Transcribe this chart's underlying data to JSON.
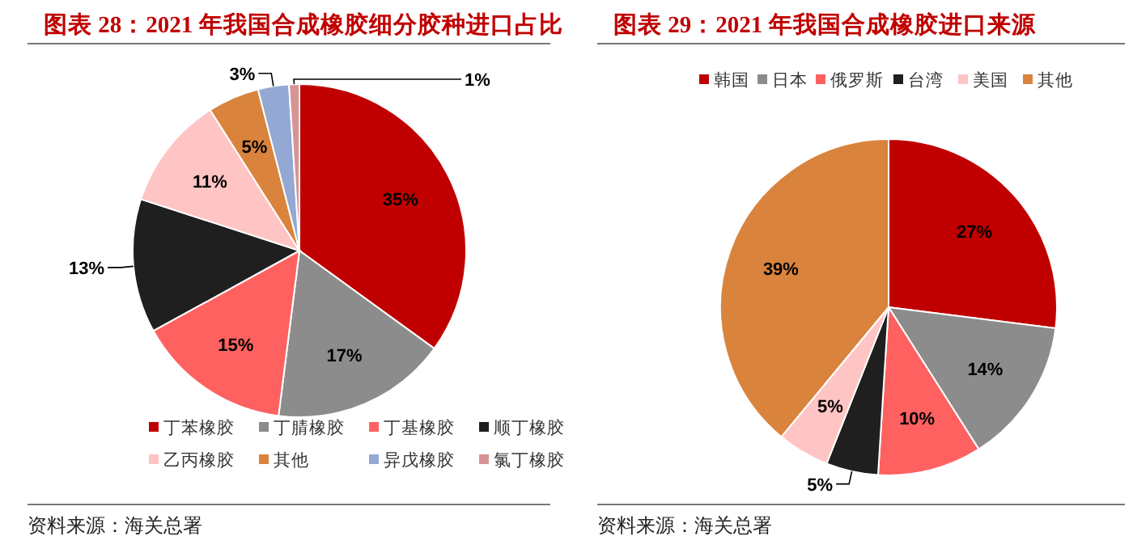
{
  "chart_data": [
    {
      "type": "pie",
      "title": "图表 28：2021 年我国合成橡胶细分胶种进口占比",
      "categories": [
        "丁苯橡胶",
        "丁腈橡胶",
        "丁基橡胶",
        "顺丁橡胶",
        "乙丙橡胶",
        "其他",
        "异戊橡胶",
        "氯丁橡胶"
      ],
      "values": [
        35,
        17,
        15,
        13,
        11,
        5,
        3,
        1
      ],
      "colors": [
        "#c00000",
        "#8c8c8c",
        "#ff6161",
        "#1f1f1f",
        "#ffc4c4",
        "#d9833d",
        "#93a9d4",
        "#d79494"
      ],
      "value_labels": [
        "35%",
        "17%",
        "15%",
        "13%",
        "11%",
        "5%",
        "3%",
        "1%"
      ],
      "legend": "bottom",
      "annotations": [
        "资料来源：海关总署"
      ]
    },
    {
      "type": "pie",
      "title": "图表 29：2021 年我国合成橡胶进口来源",
      "categories": [
        "韩国",
        "日本",
        "俄罗斯",
        "台湾",
        "美国",
        "其他"
      ],
      "values": [
        27,
        14,
        10,
        5,
        5,
        39
      ],
      "colors": [
        "#c00000",
        "#8c8c8c",
        "#ff6161",
        "#1f1f1f",
        "#ffc4c4",
        "#d9833d"
      ],
      "value_labels": [
        "27%",
        "14%",
        "10%",
        "5%",
        "5%",
        "39%"
      ],
      "legend": "top",
      "annotations": [
        "资料来源：海关总署"
      ]
    }
  ]
}
